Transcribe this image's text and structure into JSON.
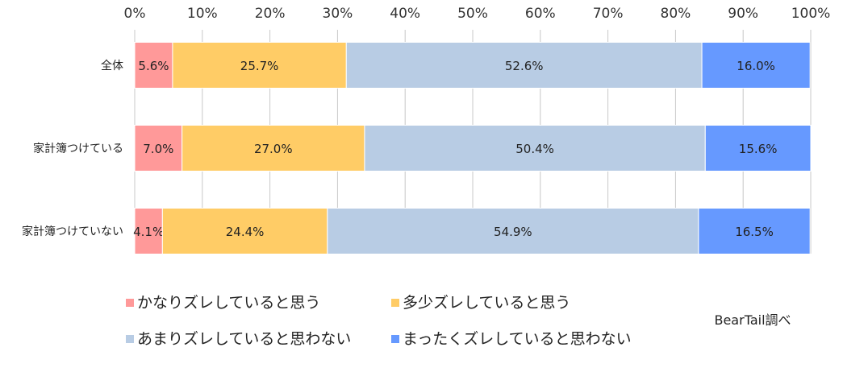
{
  "chart_data": {
    "type": "bar",
    "orientation": "horizontal-stacked",
    "categories": [
      "全体",
      "家計簿つけている",
      "家計簿つけていない"
    ],
    "series": [
      {
        "name": "かなりズレしていると思う",
        "color": "#ff9999",
        "values": [
          5.6,
          7.0,
          4.1
        ]
      },
      {
        "name": "多少ズレしていると思う",
        "color": "#ffcc66",
        "values": [
          25.7,
          27.0,
          24.4
        ]
      },
      {
        "name": "あまりズレしていると思わない",
        "color": "#b8cce4",
        "values": [
          52.6,
          50.4,
          54.9
        ]
      },
      {
        "name": "まったくズレしていると思わない",
        "color": "#6699ff",
        "values": [
          16.0,
          15.6,
          16.5
        ]
      }
    ],
    "xlim": [
      0,
      100
    ],
    "x_ticks": [
      "0%",
      "10%",
      "20%",
      "30%",
      "40%",
      "50%",
      "60%",
      "70%",
      "80%",
      "90%",
      "100%"
    ],
    "grid": true,
    "legend_position": "bottom",
    "source_note": "BearTail調べ"
  }
}
